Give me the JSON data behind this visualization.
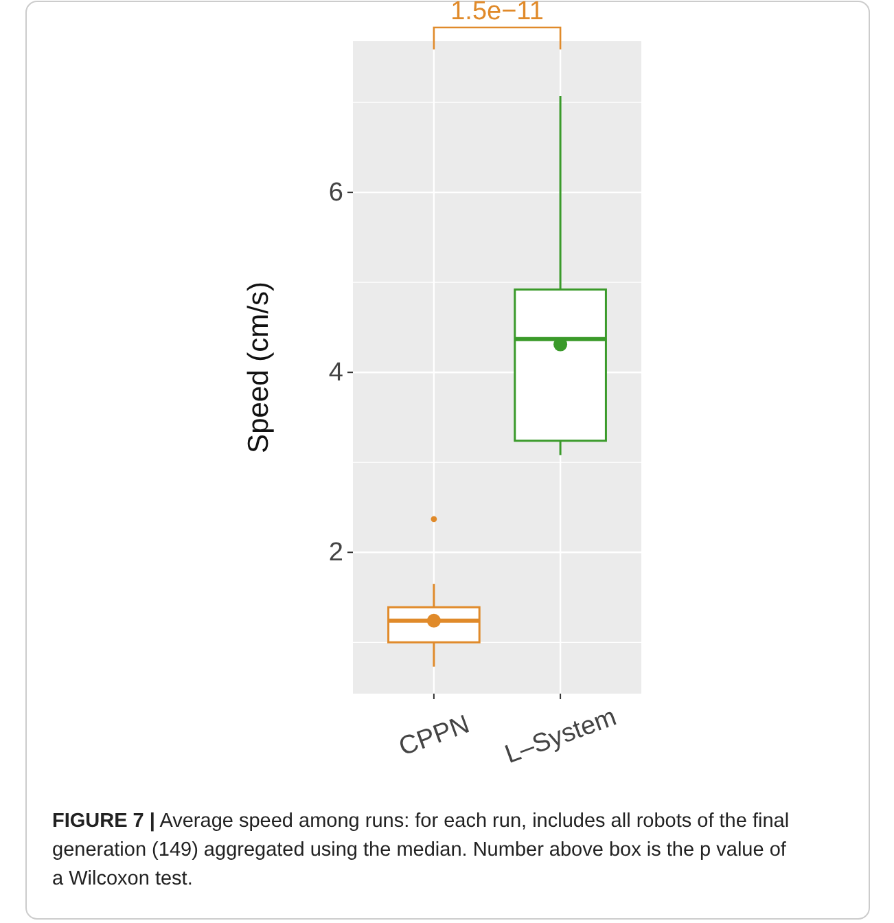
{
  "chart_data": {
    "type": "box",
    "categories": [
      "CPPN",
      "L–System"
    ],
    "ylabel": "Speed (cm/s)",
    "ylim": [
      0.43,
      7.68
    ],
    "yticks": [
      {
        "value": 1,
        "label": null
      },
      2,
      {
        "value": 3,
        "label": null
      },
      4,
      {
        "value": 5,
        "label": null
      },
      6,
      {
        "value": 7,
        "label": null
      }
    ],
    "grid": true,
    "colors": [
      "#e08a2a",
      "#3a9a2a"
    ],
    "boxes": [
      {
        "low": 0.73,
        "q1": 1.0,
        "median": 1.24,
        "q3": 1.39,
        "high": 1.65,
        "mean": 1.24,
        "outliers": [
          2.37
        ]
      },
      {
        "low": 3.08,
        "q1": 3.24,
        "median": 4.37,
        "q3": 4.92,
        "high": 7.07,
        "mean": 4.31
      }
    ],
    "annotations": [
      "1.5e−11",
      "FIGURE 7 | Average speed among runs: for each run, includes all robots of the final generation (149) aggregated using the median. Number above box is the p value of a Wilcoxon test."
    ]
  }
}
